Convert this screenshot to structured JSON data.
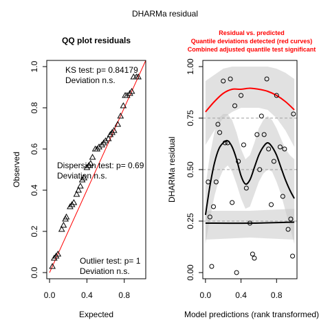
{
  "figure": {
    "title": "DHARMa residual"
  },
  "chart_data": [
    {
      "type": "scatter",
      "title": "QQ plot residuals",
      "xlabel": "Expected",
      "ylabel": "Observed",
      "xlim": [
        0,
        1
      ],
      "ylim": [
        0,
        1
      ],
      "x_ticks": [
        "0.0",
        "0.4",
        "0.8"
      ],
      "y_ticks": [
        "0.0",
        "0.2",
        "0.4",
        "0.6",
        "0.8",
        "1.0"
      ],
      "marker": "triangle",
      "reference_line": {
        "from": [
          0,
          0
        ],
        "to": [
          1,
          1
        ],
        "color": "#ff0000"
      },
      "points": [
        [
          0.03,
          0.03
        ],
        [
          0.05,
          0.07
        ],
        [
          0.07,
          0.08
        ],
        [
          0.09,
          0.09
        ],
        [
          0.13,
          0.21
        ],
        [
          0.15,
          0.23
        ],
        [
          0.17,
          0.26
        ],
        [
          0.18,
          0.27
        ],
        [
          0.22,
          0.32
        ],
        [
          0.24,
          0.33
        ],
        [
          0.26,
          0.34
        ],
        [
          0.29,
          0.38
        ],
        [
          0.31,
          0.4
        ],
        [
          0.33,
          0.42
        ],
        [
          0.35,
          0.45
        ],
        [
          0.37,
          0.46
        ],
        [
          0.4,
          0.51
        ],
        [
          0.42,
          0.52
        ],
        [
          0.44,
          0.53
        ],
        [
          0.46,
          0.56
        ],
        [
          0.49,
          0.6
        ],
        [
          0.51,
          0.6
        ],
        [
          0.53,
          0.61
        ],
        [
          0.56,
          0.62
        ],
        [
          0.58,
          0.63
        ],
        [
          0.6,
          0.64
        ],
        [
          0.63,
          0.65
        ],
        [
          0.65,
          0.67
        ],
        [
          0.67,
          0.68
        ],
        [
          0.69,
          0.69
        ],
        [
          0.73,
          0.72
        ],
        [
          0.76,
          0.76
        ],
        [
          0.79,
          0.81
        ],
        [
          0.81,
          0.86
        ],
        [
          0.83,
          0.86
        ],
        [
          0.86,
          0.87
        ],
        [
          0.88,
          0.88
        ],
        [
          0.9,
          0.95
        ],
        [
          0.93,
          0.95
        ],
        [
          0.95,
          0.95
        ]
      ],
      "annotations": {
        "ks": [
          "KS test: p= 0.84179",
          "Deviation  n.s."
        ],
        "dispersion": [
          "Dispersion test: p= 0.69",
          "Deviation  n.s."
        ],
        "outlier": [
          "Outlier test: p= 1",
          "Deviation  n.s."
        ]
      }
    },
    {
      "type": "scatter",
      "title_lines": [
        "Residual vs. predicted",
        "Quantile deviations detected (red curves)",
        "Combined adjusted quantile test significant"
      ],
      "title_color": "#ff0000",
      "xlabel": "Model predictions (rank transformed)",
      "ylabel": "DHARMa residual",
      "xlim": [
        0,
        1
      ],
      "ylim": [
        0,
        1
      ],
      "x_ticks": [
        "0.0",
        "0.4",
        "0.8"
      ],
      "y_ticks": [
        "0.00",
        "0.25",
        "0.50",
        "0.75",
        "1.00"
      ],
      "marker": "circle",
      "reference_quantiles": [
        0.25,
        0.5,
        0.75
      ],
      "points": [
        [
          0.03,
          0.44
        ],
        [
          0.05,
          0.27
        ],
        [
          0.07,
          0.03
        ],
        [
          0.09,
          0.32
        ],
        [
          0.12,
          0.44
        ],
        [
          0.14,
          0.72
        ],
        [
          0.16,
          0.68
        ],
        [
          0.2,
          0.93
        ],
        [
          0.22,
          0.63
        ],
        [
          0.25,
          0.63
        ],
        [
          0.28,
          0.94
        ],
        [
          0.3,
          0.34
        ],
        [
          0.33,
          0.81
        ],
        [
          0.35,
          0.0
        ],
        [
          0.37,
          0.54
        ],
        [
          0.4,
          0.86
        ],
        [
          0.43,
          0.62
        ],
        [
          0.46,
          0.41
        ],
        [
          0.5,
          0.24
        ],
        [
          0.53,
          0.09
        ],
        [
          0.55,
          0.07
        ],
        [
          0.58,
          0.67
        ],
        [
          0.61,
          0.5
        ],
        [
          0.63,
          0.76
        ],
        [
          0.66,
          0.67
        ],
        [
          0.69,
          0.94
        ],
        [
          0.71,
          0.6
        ],
        [
          0.74,
          0.33
        ],
        [
          0.77,
          0.54
        ],
        [
          0.8,
          0.86
        ],
        [
          0.84,
          0.61
        ],
        [
          0.87,
          0.37
        ],
        [
          0.89,
          0.6
        ],
        [
          0.93,
          0.21
        ],
        [
          0.96,
          0.26
        ],
        [
          0.98,
          0.08
        ],
        [
          0.99,
          0.77
        ]
      ],
      "curves": [
        {
          "quantile": 0.25,
          "color": "#000000",
          "x": [
            0.0,
            0.5,
            1.0
          ],
          "y": [
            0.24,
            0.24,
            0.245
          ],
          "band_lower": [
            0.16,
            0.17,
            0.16
          ],
          "band_upper": [
            0.3,
            0.3,
            0.31
          ]
        },
        {
          "quantile": 0.5,
          "color": "#000000",
          "x": [
            0.0,
            0.05,
            0.1,
            0.15,
            0.2,
            0.25,
            0.3,
            0.35,
            0.4,
            0.45,
            0.5,
            0.55,
            0.6,
            0.65,
            0.7,
            0.75,
            0.8,
            0.85,
            0.9,
            0.95,
            1.0
          ],
          "y": [
            0.28,
            0.42,
            0.53,
            0.6,
            0.63,
            0.64,
            0.61,
            0.55,
            0.47,
            0.43,
            0.45,
            0.51,
            0.57,
            0.61,
            0.63,
            0.61,
            0.57,
            0.51,
            0.45,
            0.4,
            0.36
          ],
          "band_lower": [
            0.14,
            0.26,
            0.37,
            0.45,
            0.5,
            0.52,
            0.49,
            0.43,
            0.36,
            0.31,
            0.32,
            0.38,
            0.44,
            0.48,
            0.5,
            0.49,
            0.44,
            0.38,
            0.3,
            0.22,
            0.14
          ],
          "band_upper": [
            0.42,
            0.57,
            0.68,
            0.75,
            0.77,
            0.77,
            0.74,
            0.68,
            0.6,
            0.55,
            0.57,
            0.63,
            0.7,
            0.74,
            0.76,
            0.74,
            0.7,
            0.65,
            0.6,
            0.57,
            0.55
          ]
        },
        {
          "quantile": 0.75,
          "color": "#ff0000",
          "x": [
            0.0,
            0.1,
            0.2,
            0.3,
            0.4,
            0.5,
            0.6,
            0.7,
            0.8,
            0.9,
            1.0
          ],
          "y": [
            0.78,
            0.83,
            0.87,
            0.89,
            0.89,
            0.895,
            0.89,
            0.88,
            0.86,
            0.83,
            0.79
          ],
          "band_lower": [
            0.62,
            0.69,
            0.75,
            0.78,
            0.8,
            0.8,
            0.8,
            0.79,
            0.75,
            0.69,
            0.61
          ],
          "band_upper": [
            0.93,
            0.96,
            0.99,
            1.0,
            1.0,
            1.0,
            1.0,
            1.0,
            0.99,
            0.97,
            0.94
          ]
        }
      ]
    }
  ]
}
